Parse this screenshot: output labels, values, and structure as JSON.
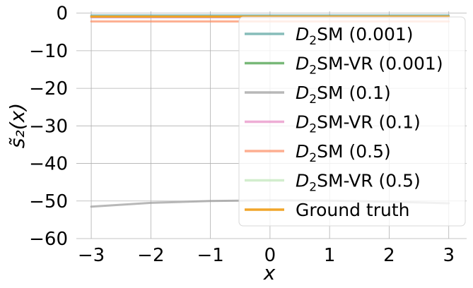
{
  "chart_data": {
    "type": "line",
    "xlabel": "x",
    "ylabel": "s̃₂(x)",
    "xlim": [
      -3.25,
      3.3
    ],
    "ylim": [
      -60,
      0.5
    ],
    "xticks": [
      -3,
      -2,
      -1,
      0,
      1,
      2,
      3
    ],
    "xtick_labels": [
      "−3",
      "−2",
      "−1",
      "0",
      "1",
      "2",
      "3"
    ],
    "yticks": [
      0,
      -10,
      -20,
      -30,
      -40,
      -50,
      -60
    ],
    "ytick_labels": [
      "0",
      "−10",
      "−20",
      "−30",
      "−40",
      "−50",
      "−60"
    ],
    "grid": true,
    "legend_position": "top-right",
    "x": [
      -3,
      -2,
      -1,
      0,
      1,
      2,
      3
    ],
    "series": [
      {
        "name_prefix": "D",
        "name_sub": "2",
        "name_suffix": "SM (0.001)",
        "color": "#5fa7a3",
        "opacity": 0.75,
        "values": [
          -0.6,
          -0.6,
          -0.6,
          -0.6,
          -0.6,
          -0.6,
          -0.6
        ]
      },
      {
        "name_prefix": "D",
        "name_sub": "2",
        "name_suffix": "SM-VR (0.001)",
        "color": "#3e9a3e",
        "opacity": 0.7,
        "values": [
          -1.0,
          -1.0,
          -1.0,
          -1.0,
          -1.0,
          -1.0,
          -1.0
        ]
      },
      {
        "name_prefix": "D",
        "name_sub": "2",
        "name_suffix": "SM (0.1)",
        "color": "#9a9a9a",
        "opacity": 0.7,
        "values": [
          -51.5,
          -50.5,
          -50.0,
          -49.8,
          -49.9,
          -50.2,
          -50.6
        ]
      },
      {
        "name_prefix": "D",
        "name_sub": "2",
        "name_suffix": "SM-VR (0.1)",
        "color": "#e78ac3",
        "opacity": 0.7,
        "values": [
          -1.1,
          -1.1,
          -1.1,
          -1.1,
          -1.1,
          -1.1,
          -1.1
        ]
      },
      {
        "name_prefix": "D",
        "name_sub": "2",
        "name_suffix": "SM (0.5)",
        "color": "#fc8d62",
        "opacity": 0.7,
        "values": [
          -2.2,
          -2.2,
          -2.2,
          -2.2,
          -2.2,
          -2.2,
          -2.2
        ]
      },
      {
        "name_prefix": "D",
        "name_sub": "2",
        "name_suffix": "SM-VR (0.5)",
        "color": "#c7e9c0",
        "opacity": 0.8,
        "values": [
          -0.9,
          -0.9,
          -0.9,
          -0.9,
          -0.9,
          -0.9,
          -0.9
        ]
      },
      {
        "name_prefix": "",
        "name_sub": "",
        "name_suffix": "Ground truth",
        "color": "#f0a020",
        "opacity": 0.95,
        "values": [
          -0.9,
          -0.9,
          -0.9,
          -0.9,
          -0.9,
          -0.9,
          -0.9
        ]
      }
    ]
  }
}
